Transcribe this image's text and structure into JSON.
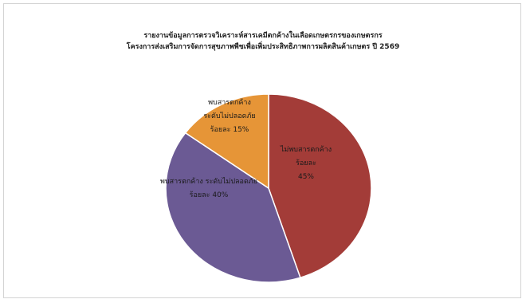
{
  "chart_data": {
    "type": "pie",
    "title": [
      "รายงานข้อมูลการตรวจวิเคราะห์สารเคมีตกค้างในเลือดเกษตรกรของเกษตรกร",
      "โครงการส่งเสริมการจัดการสุขภาพพืชเพื่อเพิ่มประสิทธิภาพการผลิตสินค้าเกษตร ปี 2569"
    ],
    "slices": [
      {
        "label_lines": [
          "ไม่พบสารตกค้าง",
          "ร้อยละ",
          "45%"
        ],
        "value": 45,
        "color": "#a33c38"
      },
      {
        "label_lines": [
          "พบสารตกค้าง ระดับไม่ปลอดภัย",
          "ร้อยละ 40%"
        ],
        "value": 40,
        "color": "#6b5a94"
      },
      {
        "label_lines": [
          "พบสารตกค้าง",
          "ระดับไม่ปลอดภัย",
          "ร้อยละ 15%"
        ],
        "value": 15,
        "color": "#e69537"
      }
    ]
  }
}
